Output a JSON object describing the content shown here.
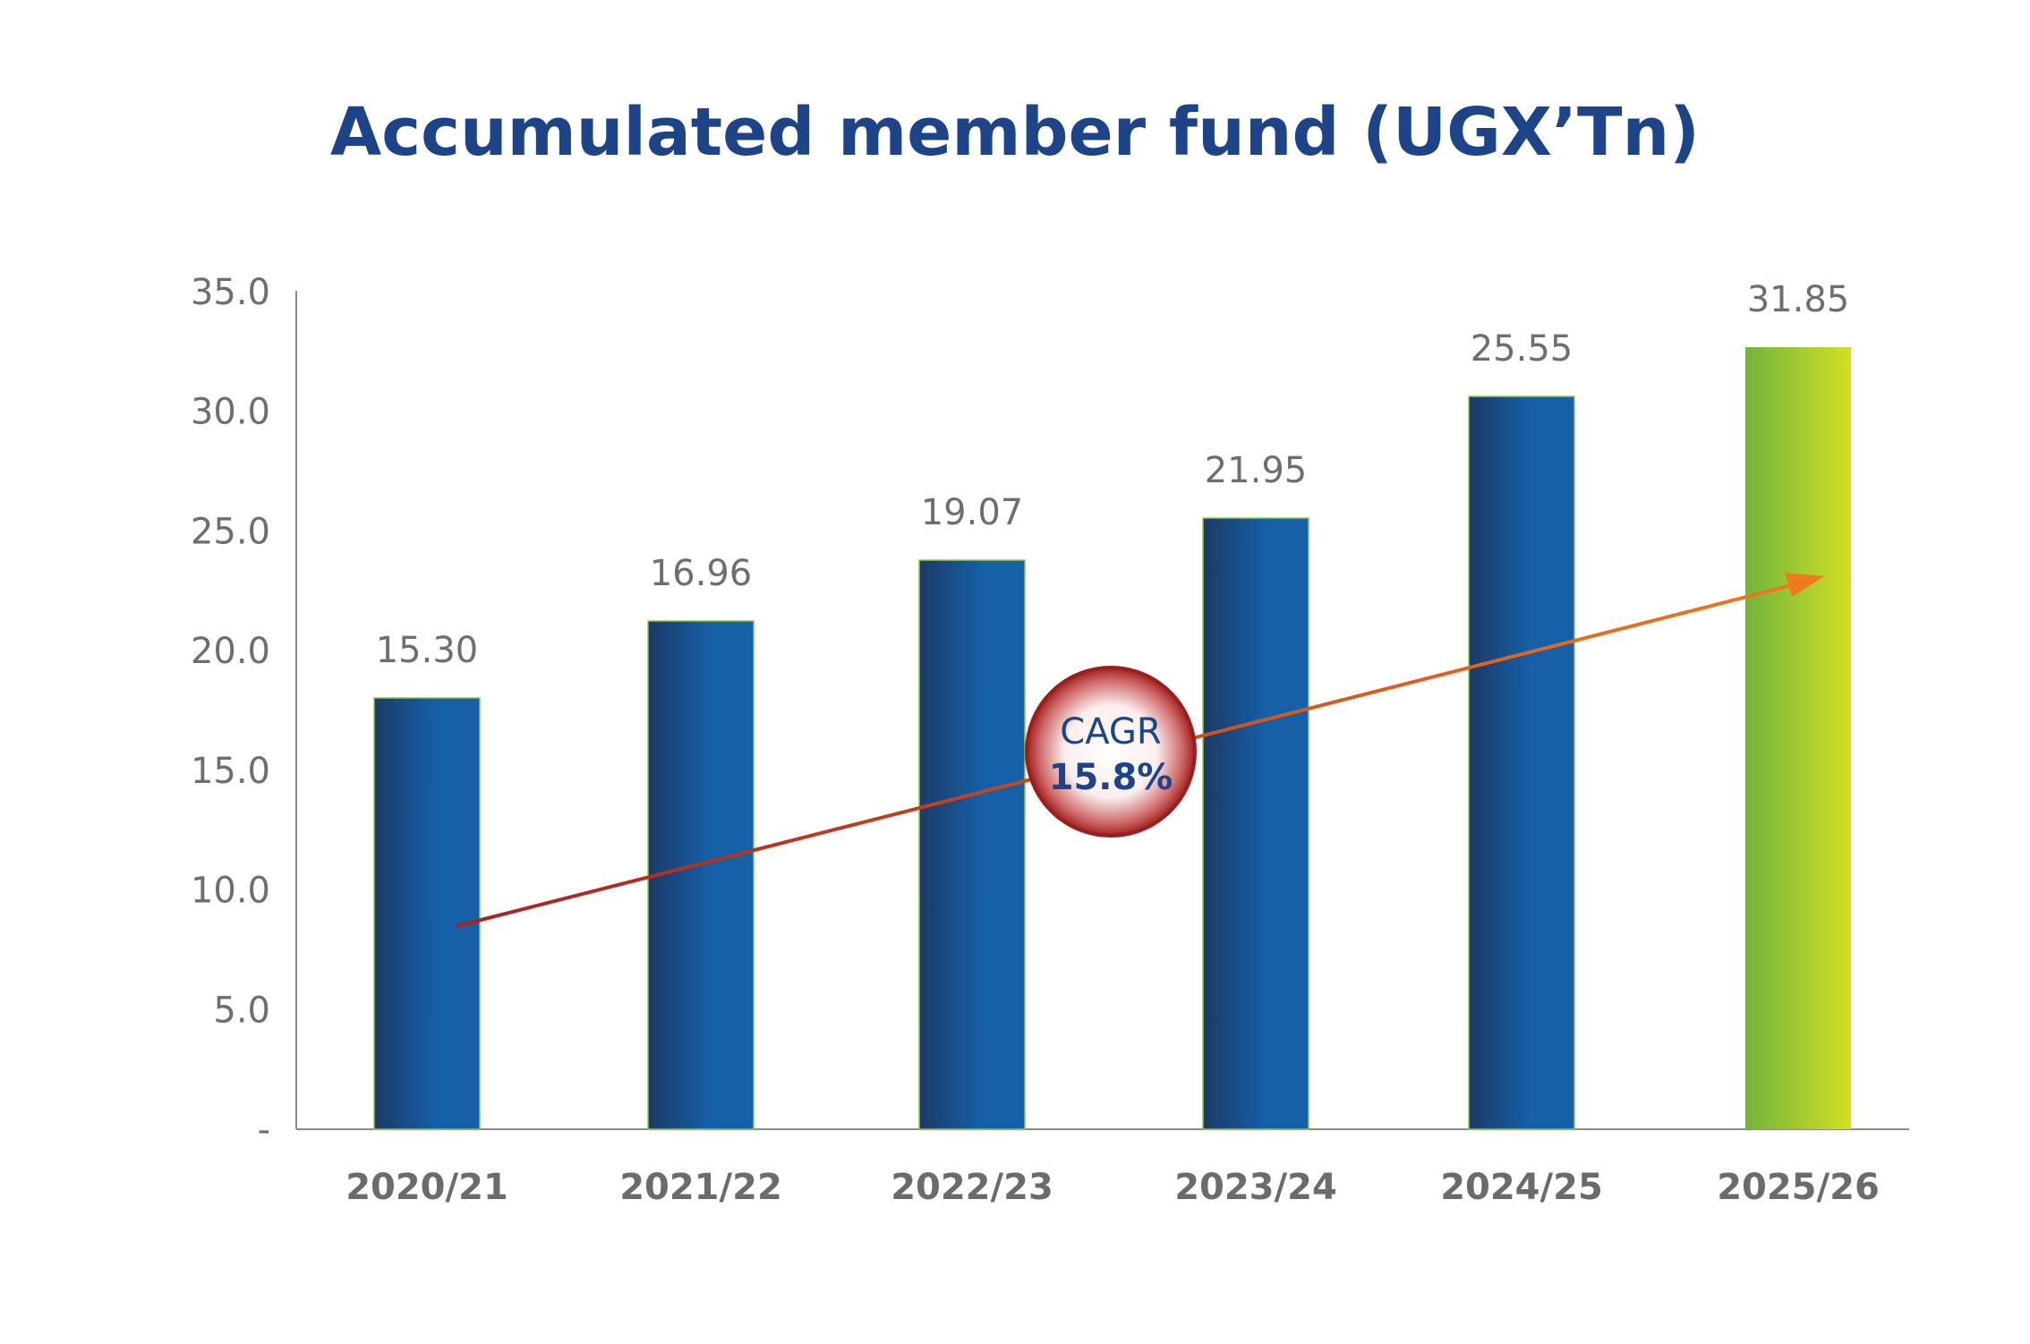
{
  "chart_data": {
    "type": "bar",
    "title": "Accumulated member fund (UGX’Tn)",
    "categories": [
      "2020/21",
      "2021/22",
      "2022/23",
      "2023/24",
      "2024/25",
      "2025/26"
    ],
    "values": [
      15.3,
      16.96,
      19.07,
      21.95,
      25.55,
      31.85
    ],
    "data_labels": [
      "15.30",
      "16.96",
      "19.07",
      "21.95",
      "25.55",
      "31.85"
    ],
    "ylim": [
      0,
      35
    ],
    "yticks": [
      0,
      5,
      10,
      15,
      20,
      25,
      30,
      35
    ],
    "ytick_labels": [
      "-",
      "5.0",
      "10.0",
      "15.0",
      "20.0",
      "25.0",
      "30.0",
      "35.0"
    ],
    "xlabel": "",
    "ylabel": "",
    "grid": false,
    "colors": {
      "bar_dark": "#1c3a66",
      "bar_light": "#1660a8",
      "highlight_start": "#72b33e",
      "highlight_end": "#d2e024",
      "arrow_start": "#a82222",
      "arrow_end": "#f07a1e",
      "title": "#1d4489"
    },
    "annotation": {
      "line1": "CAGR",
      "line2": "15.8%"
    }
  }
}
